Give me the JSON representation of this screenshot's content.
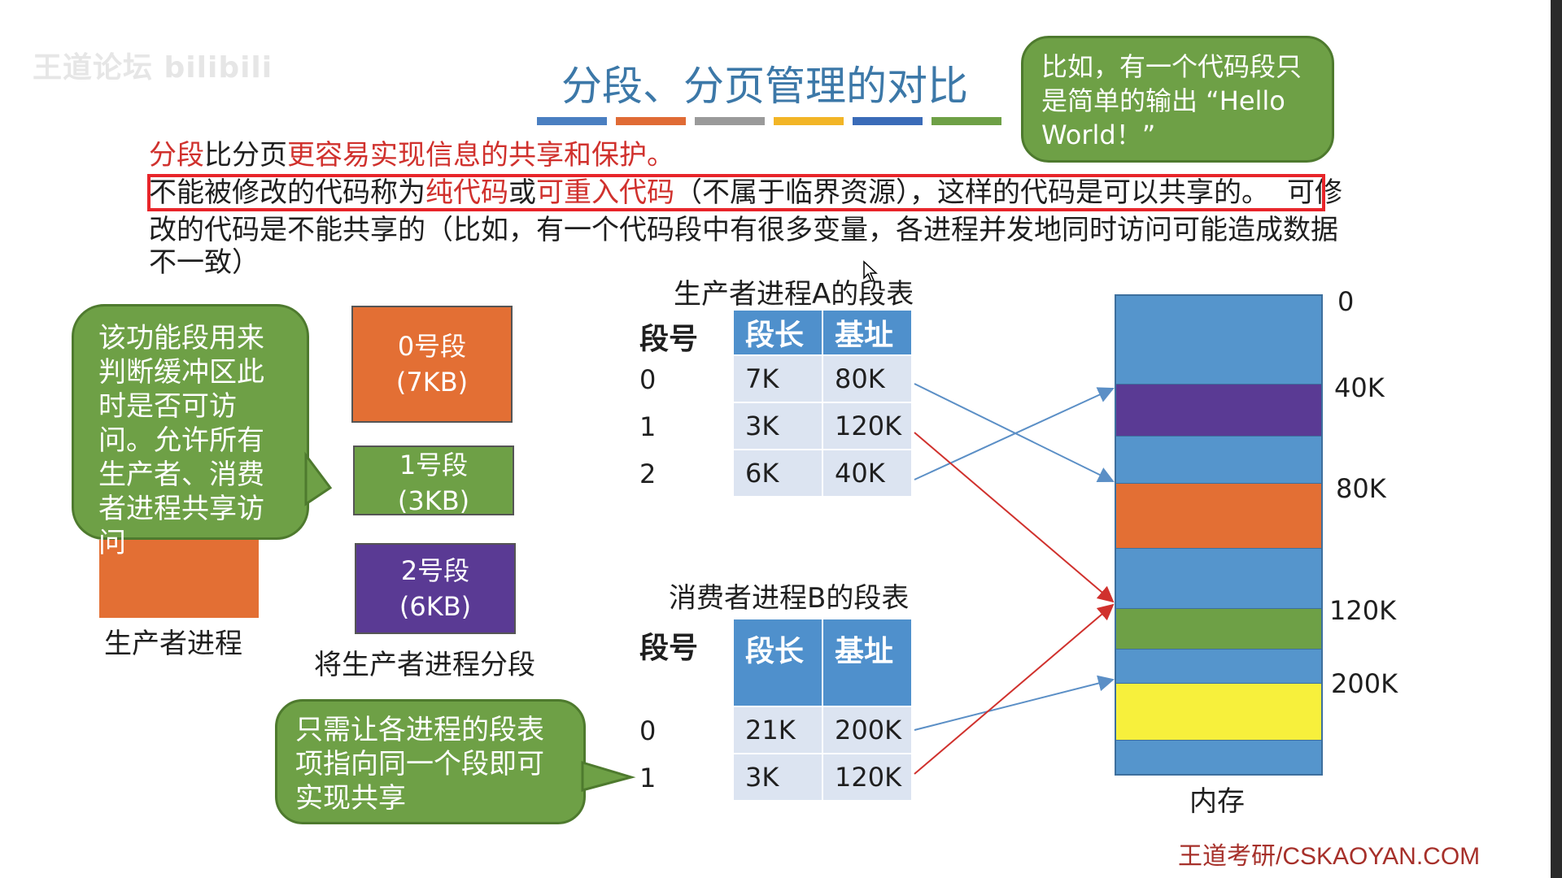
{
  "watermark": "王道论坛 bilibili",
  "title": "分段、分页管理的对比",
  "title_bar_colors": [
    "#4a7fc1",
    "#e06b35",
    "#9a9a9a",
    "#f2b526",
    "#3a6bb8",
    "#6ea046"
  ],
  "text": {
    "line1_red_a": "分段",
    "line1_black": "比分页",
    "line1_red_b": "更容易实现信息的共享和保护。",
    "line2_a": "不能被修改的代码称为",
    "line2_red_a": "纯代码",
    "line2_b": "或",
    "line2_red_b": "可重入代码",
    "line2_c": "（不属于临界资源），这样的代码是可以共享的。",
    "line2_tail": "可修",
    "line3": "改的代码是不能共享的（比如，有一个代码段中有很多变量，各进程并发地同时访问可能造成数据",
    "line4": "不一致）"
  },
  "callouts": {
    "top": "比如，有一个代码段只是简单的输出 “Hello World！”",
    "left": "该功能段用来判断缓冲区此时是否可访问。允许所有生产者、消费者进程共享访问",
    "bottom": "只需让各进程的段表项指向同一个段即可实现共享"
  },
  "segments": [
    {
      "name": "0号段",
      "size": "(7KB)",
      "color": "#e36f34"
    },
    {
      "name": "1号段",
      "size": "(3KB)",
      "color": "#6ea046"
    },
    {
      "name": "2号段",
      "size": "(6KB)",
      "color": "#5a3a94"
    }
  ],
  "labels": {
    "producer": "生产者进程",
    "split": "将生产者进程分段",
    "memory": "内存"
  },
  "tableA": {
    "title": "生产者进程A的段表",
    "seg_no_header": "段号",
    "headers": [
      "段长",
      "基址"
    ],
    "rows": [
      {
        "no": "0",
        "len": "7K",
        "base": "80K",
        "highlight": false
      },
      {
        "no": "1",
        "len": "3K",
        "base": "120K",
        "highlight": true
      },
      {
        "no": "2",
        "len": "6K",
        "base": "40K",
        "highlight": false
      }
    ]
  },
  "tableB": {
    "title": "消费者进程B的段表",
    "seg_no_header": "段号",
    "headers": [
      "段长",
      "基址"
    ],
    "rows": [
      {
        "no": "0",
        "len": "21K",
        "base": "200K",
        "highlight": false
      },
      {
        "no": "1",
        "len": "3K",
        "base": "120K",
        "highlight": true
      }
    ]
  },
  "memory": {
    "addresses": [
      "0",
      "40K",
      "80K",
      "120K",
      "200K"
    ],
    "colors": {
      "free": "#5595cc",
      "purple": "#5a3a94",
      "orange": "#e36f34",
      "green": "#6ea046",
      "yellow": "#f7f03c"
    }
  },
  "footer": "王道考研/CSKAOYAN.COM"
}
